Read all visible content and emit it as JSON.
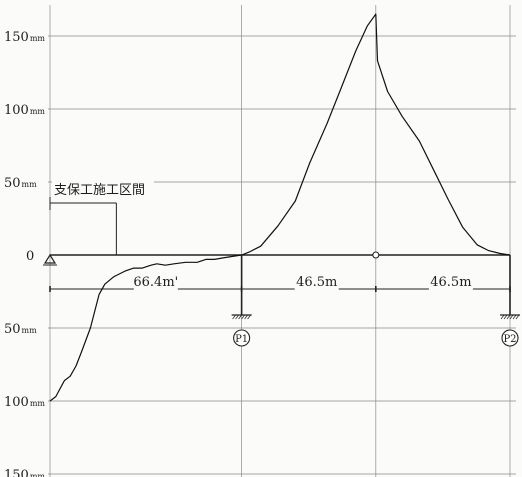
{
  "y_axis": {
    "ticks": [
      {
        "value": 150,
        "num": "150",
        "unit": "mm"
      },
      {
        "value": 100,
        "num": "100",
        "unit": "mm"
      },
      {
        "value": 50,
        "num": "50",
        "unit": "mm"
      },
      {
        "value": 0,
        "num": "0",
        "unit": ""
      },
      {
        "value": -50,
        "num": "50",
        "unit": "mm"
      },
      {
        "value": -100,
        "num": "100",
        "unit": "mm"
      },
      {
        "value": -150,
        "num": "150",
        "unit": "mm"
      }
    ]
  },
  "spans": [
    {
      "label": "66.4m'"
    },
    {
      "label": "46.5m"
    },
    {
      "label": "46.5m"
    }
  ],
  "support_section_label": "支保工施工区間",
  "piers": [
    {
      "label": "P1"
    },
    {
      "label": "P2"
    }
  ],
  "chart_data": {
    "type": "line",
    "ylim": [
      -150,
      150
    ],
    "x_reference": "distance from left abutment (m)",
    "spans_m": [
      66.4,
      46.5,
      46.5
    ],
    "support_section_m": [
      0,
      23
    ],
    "series": [
      {
        "x": [
          0,
          2,
          5,
          7,
          9,
          11,
          14,
          17,
          19,
          22,
          26,
          29,
          32,
          35,
          37,
          40,
          43,
          47,
          51,
          54,
          57,
          60,
          63,
          66.4,
          69,
          73,
          79,
          85,
          90,
          96,
          101,
          106,
          110,
          112.9,
          113.5,
          117,
          122,
          128,
          133,
          138,
          143,
          148,
          152,
          156,
          159.4
        ],
        "y": [
          -100,
          -97,
          -86,
          -83,
          -76,
          -66,
          -50,
          -27,
          -20,
          -15,
          -11,
          -9,
          -9,
          -7,
          -6,
          -7,
          -6,
          -5,
          -5,
          -3,
          -3,
          -2,
          -1,
          0,
          2,
          6,
          20,
          37,
          63,
          90,
          115,
          140,
          157,
          165,
          133,
          112,
          95,
          78,
          58,
          38,
          19,
          7,
          3,
          1,
          0
        ]
      }
    ]
  }
}
